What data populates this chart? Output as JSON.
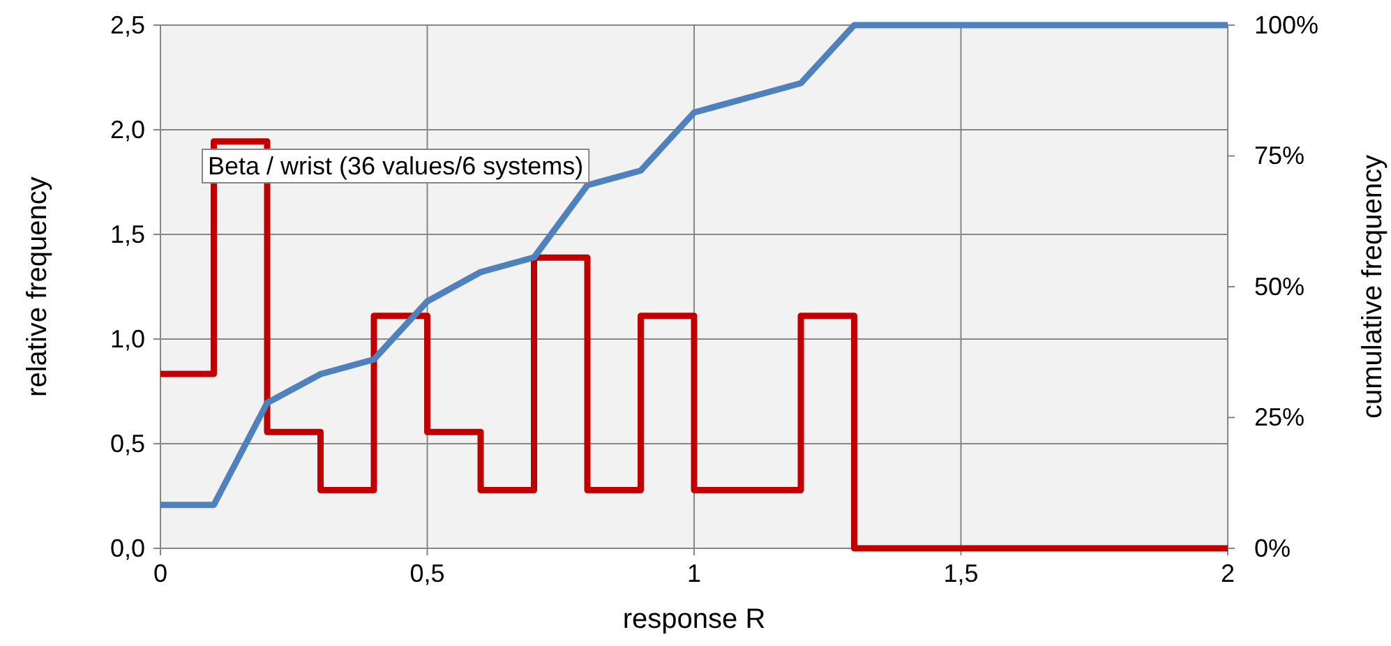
{
  "chart_data": {
    "type": "line",
    "xlabel": "response R",
    "ylabel": "relative frequency",
    "y2label": "cumulative frequency",
    "annotations": [
      "Beta / wrist (36 values/6 systems)"
    ],
    "series": [
      {
        "type": "step",
        "color": "#c00000",
        "x": [
          0,
          0.1,
          0.2,
          0.3,
          0.4,
          0.5,
          0.6,
          0.7,
          0.8,
          0.9,
          1.0,
          1.1,
          1.2,
          1.3,
          2.0
        ],
        "values": [
          0.833,
          1.944,
          0.556,
          0.278,
          1.111,
          0.556,
          0.278,
          1.389,
          0.278,
          1.111,
          0.278,
          0.278,
          1.111,
          0,
          0
        ]
      },
      {
        "axis": "y2",
        "color": "#4f81bd",
        "x": [
          0,
          0.1,
          0.2,
          0.3,
          0.4,
          0.5,
          0.6,
          0.7,
          0.8,
          0.9,
          1.0,
          1.1,
          1.2,
          1.3,
          2.0
        ],
        "values": [
          8.3,
          8.3,
          27.8,
          33.3,
          36.1,
          47.2,
          52.8,
          55.6,
          69.4,
          72.2,
          83.3,
          86.1,
          88.9,
          100,
          100
        ]
      }
    ],
    "xlim": [
      0,
      2
    ],
    "xticks": [
      0,
      {
        "value": 0.5,
        "label": "0,5"
      },
      1,
      {
        "value": 1.5,
        "label": "1,5"
      },
      2
    ],
    "ylim": [
      0,
      2.5
    ],
    "yticks": [
      {
        "value": 0,
        "label": "0,0"
      },
      {
        "value": 0.5,
        "label": "0,5"
      },
      {
        "value": 1,
        "label": "1,0"
      },
      {
        "value": 1.5,
        "label": "1,5"
      },
      {
        "value": 2,
        "label": "2,0"
      },
      {
        "value": 2.5,
        "label": "2,5"
      }
    ],
    "y2lim": [
      0,
      100
    ],
    "y2ticks": [
      {
        "value": 0,
        "label": "0%"
      },
      {
        "value": 25,
        "label": "25%"
      },
      {
        "value": 50,
        "label": "50%"
      },
      {
        "value": 75,
        "label": "75%"
      },
      {
        "value": 100,
        "label": "100%"
      }
    ],
    "grid": true
  }
}
